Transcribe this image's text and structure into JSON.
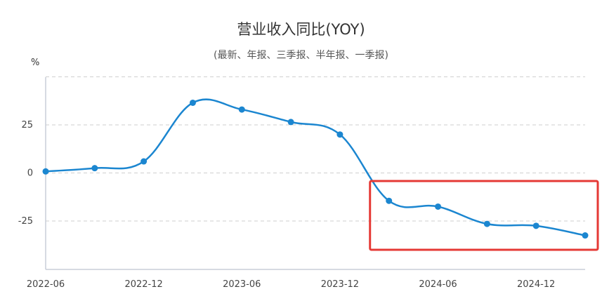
{
  "chart_data": {
    "type": "line",
    "title": "营业收入同比(YOY)",
    "subtitle": "(最新、年报、三季报、半年报、一季报)",
    "ylabel": "%",
    "xlabel": "",
    "x": [
      "2022-06",
      "2022-09",
      "2022-12",
      "2023-03",
      "2023-06",
      "2023-09",
      "2023-12",
      "2024-03",
      "2024-06",
      "2024-09",
      "2024-12",
      "2025-03"
    ],
    "x_tick_labels": [
      "2022-06",
      "2022-12",
      "2023-06",
      "2023-12",
      "2024-06",
      "2024-12"
    ],
    "y_tick_labels": [
      "25",
      "0",
      "-25"
    ],
    "series": [
      {
        "values": [
          0.8,
          2.5,
          6.0,
          36.5,
          33.0,
          26.5,
          20.0,
          -14.5,
          -17.5,
          -26.5,
          -27.5,
          -32.5
        ]
      }
    ],
    "ylim": [
      -50,
      50
    ],
    "grid": true,
    "line_color": "#1b86d0",
    "highlight": {
      "from": "2024-03",
      "to": "2025-03",
      "color": "#e53935"
    }
  }
}
